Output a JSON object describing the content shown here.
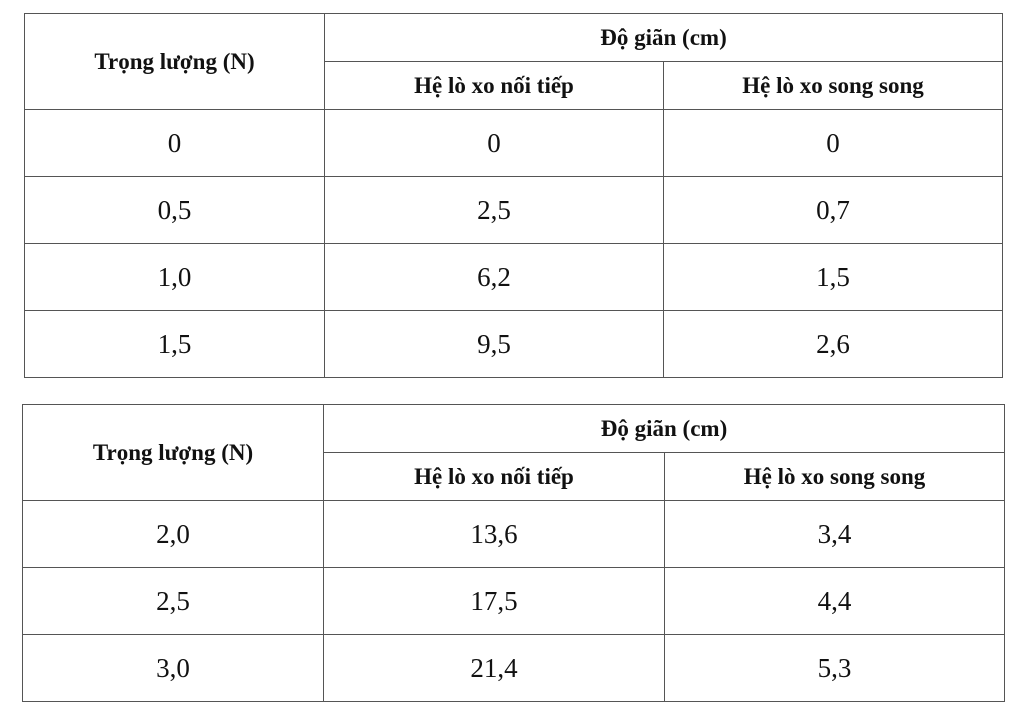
{
  "tables": [
    {
      "header": {
        "weight": "Trọng lượng (N)",
        "extension": "Độ giãn (cm)",
        "series": "Hệ lò xo nối tiếp",
        "parallel": "Hệ lò xo song song"
      },
      "rows": [
        [
          "0",
          "0",
          "0"
        ],
        [
          "0,5",
          "2,5",
          "0,7"
        ],
        [
          "1,0",
          "6,2",
          "1,5"
        ],
        [
          "1,5",
          "9,5",
          "2,6"
        ]
      ]
    },
    {
      "header": {
        "weight": "Trọng lượng (N)",
        "extension": "Độ giãn (cm)",
        "series": "Hệ lò xo nối tiếp",
        "parallel": "Hệ lò xo song song"
      },
      "rows": [
        [
          "2,0",
          "13,6",
          "3,4"
        ],
        [
          "2,5",
          "17,5",
          "4,4"
        ],
        [
          "3,0",
          "21,4",
          "5,3"
        ]
      ]
    }
  ]
}
